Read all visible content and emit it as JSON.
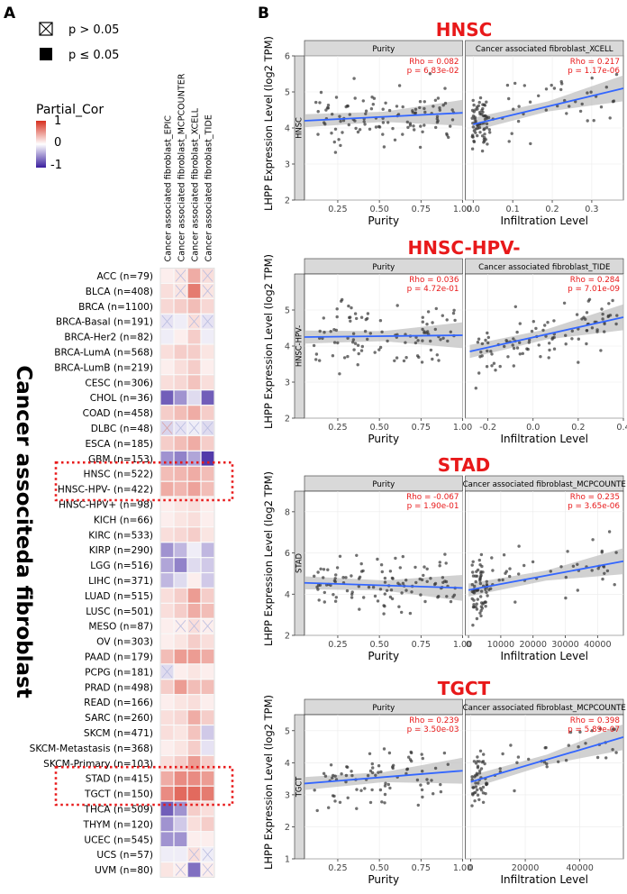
{
  "panel_a": {
    "label": "A",
    "legend": {
      "crossed_text": "p > 0.05",
      "filled_text": "p ≤ 0.05",
      "title": "Partial_Cor",
      "ticks": [
        "1",
        "0",
        "-1"
      ],
      "colors": {
        "high": "#d7301f",
        "mid": "#ffffff",
        "low": "#3a1f9e"
      }
    },
    "side_title": "Cancer associteda fibroblast",
    "highlight_color": "#e8191a"
  },
  "panel_b": {
    "label": "B",
    "ylabel": "LHPP Expression Level (log2 TPM)",
    "purity_xlabel": "Purity",
    "infil_xlabel": "Infiltration Level",
    "point_color": "#333333",
    "line_color": "#3366ff",
    "title_color": "#e8191a",
    "stat_color": "#e8191a"
  },
  "chart_data": [
    {
      "type": "heatmap",
      "columns": [
        "Cancer associated fibroblast_EPIC",
        "Cancer associated fibroblast_MCPCOUNTER",
        "Cancer associated fibroblast_XCELL",
        "Cancer associated fibroblast_TIDE"
      ],
      "rows": [
        "ACC (n=79)",
        "BLCA (n=408)",
        "BRCA (n=1100)",
        "BRCA-Basal (n=191)",
        "BRCA-Her2 (n=82)",
        "BRCA-LumA (n=568)",
        "BRCA-LumB (n=219)",
        "CESC (n=306)",
        "CHOL (n=36)",
        "COAD (n=458)",
        "DLBC (n=48)",
        "ESCA (n=185)",
        "GBM (n=153)",
        "HNSC (n=522)",
        "HNSC-HPV- (n=422)",
        "HNSC-HPV+ (n=98)",
        "KICH (n=66)",
        "KIRC (n=533)",
        "KIRP (n=290)",
        "LGG (n=516)",
        "LIHC (n=371)",
        "LUAD (n=515)",
        "LUSC (n=501)",
        "MESO (n=87)",
        "OV (n=303)",
        "PAAD (n=179)",
        "PCPG (n=181)",
        "PRAD (n=498)",
        "READ (n=166)",
        "SARC (n=260)",
        "SKCM (n=471)",
        "SKCM-Metastasis (n=368)",
        "SKCM-Primary (n=103)",
        "STAD (n=415)",
        "TGCT (n=150)",
        "THCA (n=509)",
        "THYM (n=120)",
        "UCEC (n=545)",
        "UCS (n=57)",
        "UVM (n=80)"
      ],
      "values": [
        [
          0.05,
          0.08,
          0.25,
          0.1
        ],
        [
          0.1,
          0.08,
          0.4,
          0.08
        ],
        [
          0.12,
          0.15,
          0.2,
          0.12
        ],
        [
          -0.08,
          -0.05,
          0.1,
          -0.08
        ],
        [
          -0.05,
          0.05,
          0.15,
          -0.05
        ],
        [
          0.1,
          0.15,
          0.15,
          0.08
        ],
        [
          0.05,
          0.1,
          0.15,
          0.05
        ],
        [
          0.1,
          0.12,
          0.18,
          0.1
        ],
        [
          -0.45,
          -0.3,
          -0.1,
          -0.45
        ],
        [
          0.15,
          0.2,
          0.25,
          0.15
        ],
        [
          -0.12,
          -0.08,
          -0.05,
          -0.1
        ],
        [
          0.15,
          0.2,
          0.25,
          0.15
        ],
        [
          -0.3,
          -0.35,
          -0.25,
          -0.55
        ],
        [
          0.2,
          0.22,
          0.25,
          0.2
        ],
        [
          0.25,
          0.22,
          0.28,
          0.2
        ],
        [
          0.05,
          0.08,
          0.1,
          0.05
        ],
        [
          0.05,
          0.08,
          0.1,
          0.05
        ],
        [
          0.1,
          0.12,
          0.15,
          0.08
        ],
        [
          -0.3,
          -0.2,
          -0.05,
          -0.2
        ],
        [
          -0.25,
          -0.35,
          -0.1,
          -0.15
        ],
        [
          -0.2,
          -0.1,
          0.05,
          -0.15
        ],
        [
          0.1,
          0.15,
          0.3,
          0.15
        ],
        [
          0.1,
          0.15,
          0.25,
          0.2
        ],
        [
          0.05,
          0.05,
          0.1,
          0.05
        ],
        [
          0.05,
          0.08,
          0.15,
          0.1
        ],
        [
          0.2,
          0.3,
          0.3,
          0.25
        ],
        [
          -0.1,
          0.05,
          0.08,
          0.05
        ],
        [
          0.15,
          0.3,
          0.2,
          0.2
        ],
        [
          0.05,
          0.08,
          0.1,
          0.05
        ],
        [
          0.1,
          0.12,
          0.25,
          0.15
        ],
        [
          0.1,
          0.08,
          0.18,
          -0.15
        ],
        [
          0.05,
          0.08,
          0.15,
          -0.08
        ],
        [
          0.1,
          0.15,
          0.3,
          0.15
        ],
        [
          0.25,
          0.35,
          0.35,
          0.3
        ],
        [
          0.35,
          0.45,
          0.45,
          0.4
        ],
        [
          -0.45,
          -0.3,
          0.15,
          0.1
        ],
        [
          -0.3,
          -0.15,
          0.1,
          0.15
        ],
        [
          -0.3,
          -0.3,
          0.05,
          0.05
        ],
        [
          -0.05,
          -0.05,
          0.1,
          -0.05
        ],
        [
          0.08,
          0.05,
          -0.4,
          0.05
        ]
      ],
      "nonsignificant": [
        [
          false,
          true,
          false,
          true
        ],
        [
          false,
          true,
          false,
          true
        ],
        [
          false,
          false,
          false,
          false
        ],
        [
          true,
          false,
          true,
          true
        ],
        [
          false,
          false,
          false,
          false
        ],
        [
          false,
          false,
          false,
          false
        ],
        [
          false,
          false,
          false,
          false
        ],
        [
          false,
          false,
          false,
          false
        ],
        [
          false,
          false,
          false,
          false
        ],
        [
          false,
          false,
          false,
          false
        ],
        [
          true,
          true,
          true,
          true
        ],
        [
          false,
          false,
          false,
          false
        ],
        [
          false,
          false,
          false,
          false
        ],
        [
          false,
          false,
          false,
          false
        ],
        [
          false,
          false,
          false,
          false
        ],
        [
          false,
          false,
          false,
          false
        ],
        [
          false,
          false,
          false,
          false
        ],
        [
          false,
          false,
          false,
          false
        ],
        [
          false,
          false,
          false,
          false
        ],
        [
          false,
          false,
          false,
          false
        ],
        [
          false,
          false,
          false,
          false
        ],
        [
          false,
          false,
          false,
          false
        ],
        [
          false,
          false,
          false,
          false
        ],
        [
          false,
          true,
          true,
          true
        ],
        [
          false,
          false,
          false,
          false
        ],
        [
          false,
          false,
          false,
          false
        ],
        [
          true,
          false,
          false,
          false
        ],
        [
          false,
          false,
          false,
          false
        ],
        [
          false,
          false,
          false,
          false
        ],
        [
          false,
          false,
          false,
          false
        ],
        [
          false,
          false,
          false,
          false
        ],
        [
          false,
          false,
          false,
          false
        ],
        [
          false,
          false,
          false,
          false
        ],
        [
          false,
          false,
          false,
          false
        ],
        [
          false,
          false,
          false,
          false
        ],
        [
          false,
          false,
          false,
          false
        ],
        [
          false,
          false,
          false,
          false
        ],
        [
          false,
          false,
          false,
          false
        ],
        [
          false,
          false,
          true,
          true
        ],
        [
          false,
          true,
          false,
          true
        ]
      ],
      "highlighted_rows": [
        [
          "HNSC (n=522)",
          "HNSC-HPV- (n=422)"
        ],
        [
          "STAD (n=415)",
          "TGCT (n=150)"
        ]
      ],
      "scale": [
        -1,
        1
      ]
    },
    {
      "type": "scatter",
      "title": "HNSC",
      "row_label": "HNSC",
      "panels": [
        {
          "strip": "Purity",
          "xticks": [
            "0.25",
            "0.50",
            "0.75",
            "1.00"
          ],
          "xlim": [
            0.05,
            1.0
          ],
          "rho": "Rho = 0.082",
          "p": "p = 6.83e-02",
          "n": 110,
          "fit": [
            [
              0.05,
              4.2
            ],
            [
              1.0,
              4.42
            ]
          ],
          "scatter_pattern": "uniform"
        },
        {
          "strip": "Cancer associated fibroblast_XCELL",
          "xticks": [
            "0.0",
            "0.1",
            "0.2",
            "0.3"
          ],
          "xlim": [
            -0.02,
            0.38
          ],
          "rho": "Rho = 0.217",
          "p": "p = 1.17e-06",
          "n": 110,
          "fit": [
            [
              0.0,
              4.1
            ],
            [
              0.38,
              5.1
            ]
          ],
          "scatter_pattern": "clustered"
        }
      ],
      "ylim": [
        2,
        6
      ],
      "yticks": [
        2,
        3,
        4,
        5,
        6
      ]
    },
    {
      "type": "scatter",
      "title": "HNSC-HPV-",
      "row_label": "HNSC-HPV-",
      "panels": [
        {
          "strip": "Purity",
          "xticks": [
            "0.25",
            "0.50",
            "0.75",
            "1.00"
          ],
          "xlim": [
            0.05,
            1.0
          ],
          "rho": "Rho = 0.036",
          "p": "p = 4.72e-01",
          "n": 100,
          "fit": [
            [
              0.05,
              4.25
            ],
            [
              1.0,
              4.3
            ]
          ],
          "scatter_pattern": "uniform"
        },
        {
          "strip": "Cancer associated fibroblast_TIDE",
          "xticks": [
            "-0.2",
            "0.0",
            "0.2",
            "0.4"
          ],
          "xlim": [
            -0.3,
            0.4
          ],
          "rho": "Rho = 0.284",
          "p": "p = 7.01e-09",
          "n": 100,
          "fit": [
            [
              -0.28,
              3.85
            ],
            [
              0.4,
              4.8
            ]
          ],
          "scatter_pattern": "uniform"
        }
      ],
      "ylim": [
        2,
        6
      ],
      "yticks": [
        2,
        3,
        4,
        5
      ]
    },
    {
      "type": "scatter",
      "title": "STAD",
      "row_label": "STAD",
      "panels": [
        {
          "strip": "Purity",
          "xticks": [
            "0.25",
            "0.50",
            "0.75",
            "1.00"
          ],
          "xlim": [
            0.05,
            1.0
          ],
          "rho": "Rho = -0.067",
          "p": "p = 1.90e-01",
          "n": 110,
          "fit": [
            [
              0.05,
              4.55
            ],
            [
              1.0,
              4.3
            ]
          ],
          "scatter_pattern": "uniform"
        },
        {
          "strip": "Cancer associated fibroblast_MCPCOUNTER",
          "xticks": [
            "0",
            "10000",
            "20000",
            "30000",
            "40000"
          ],
          "xlim": [
            -1000,
            48000
          ],
          "rho": "Rho = 0.235",
          "p": "p = 3.65e-06",
          "n": 110,
          "fit": [
            [
              0,
              4.2
            ],
            [
              48000,
              5.6
            ]
          ],
          "scatter_pattern": "clustered"
        }
      ],
      "ylim": [
        2,
        9
      ],
      "yticks": [
        2,
        4,
        6,
        8
      ]
    },
    {
      "type": "scatter",
      "title": "TGCT",
      "row_label": "TGCT",
      "panels": [
        {
          "strip": "Purity",
          "xticks": [
            "0.25",
            "0.50",
            "0.75",
            "1.00"
          ],
          "xlim": [
            0.05,
            1.0
          ],
          "rho": "Rho = 0.239",
          "p": "p = 3.50e-03",
          "n": 80,
          "fit": [
            [
              0.05,
              3.35
            ],
            [
              1.0,
              3.75
            ]
          ],
          "scatter_pattern": "uniform"
        },
        {
          "strip": "Cancer associated fibroblast_MCPCOUNTER",
          "xticks": [
            "0",
            "20000",
            "40000"
          ],
          "xlim": [
            -2000,
            56000
          ],
          "rho": "Rho = 0.398",
          "p": "p = 5.89e-07",
          "n": 80,
          "fit": [
            [
              0,
              3.4
            ],
            [
              56000,
              4.8
            ]
          ],
          "scatter_pattern": "clustered"
        }
      ],
      "ylim": [
        1,
        5.5
      ],
      "yticks": [
        1,
        2,
        3,
        4,
        5
      ]
    }
  ]
}
